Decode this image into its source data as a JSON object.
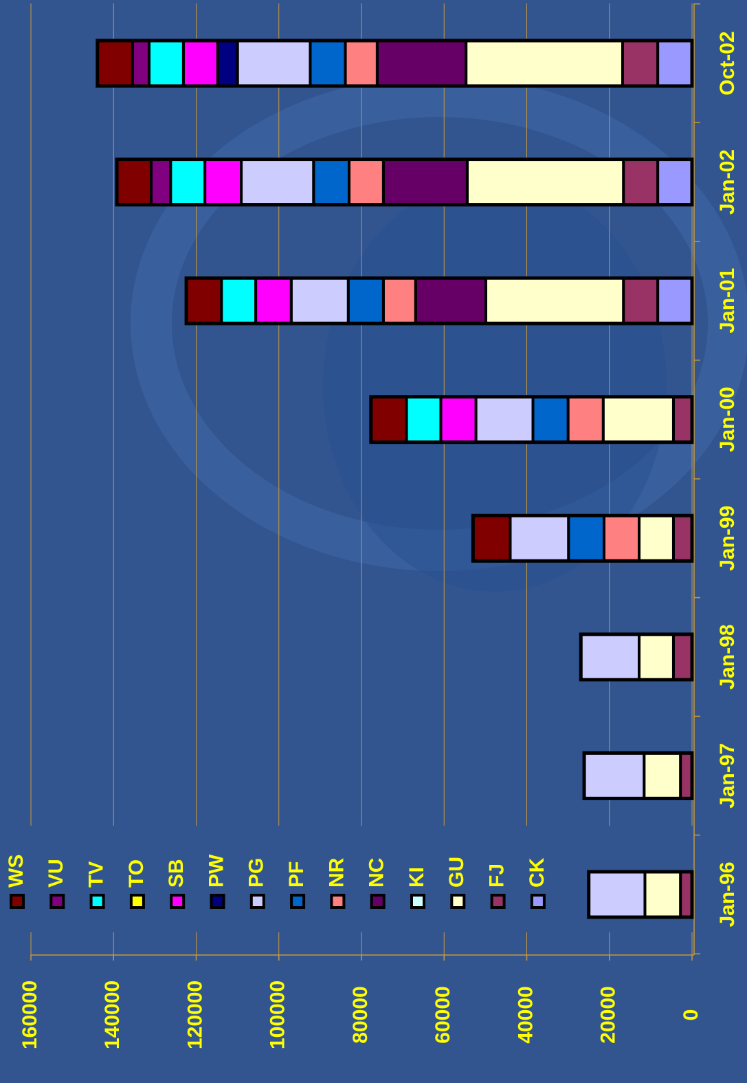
{
  "chart_data": {
    "type": "stacked_bar",
    "categories": [
      "Jan-96",
      "Jan-97",
      "Jan-98",
      "Jan-99",
      "Jan-00",
      "Jan-01",
      "Jan-02",
      "Oct-02"
    ],
    "series": [
      {
        "name": "CK",
        "color": "#9999ff",
        "values": [
          0,
          0,
          0,
          0,
          0,
          8300,
          8300,
          8300
        ]
      },
      {
        "name": "FJ",
        "color": "#993366",
        "values": [
          2800,
          2800,
          4500,
          4500,
          4500,
          8300,
          8300,
          8500
        ]
      },
      {
        "name": "GU",
        "color": "#ffffcc",
        "values": [
          8600,
          8800,
          8300,
          8300,
          17000,
          33300,
          37800,
          37900
        ]
      },
      {
        "name": "KI",
        "color": "#ccffff",
        "values": [
          0,
          0,
          0,
          0,
          0,
          0,
          0,
          0
        ]
      },
      {
        "name": "NC",
        "color": "#660066",
        "values": [
          0,
          0,
          0,
          0,
          0,
          17000,
          20300,
          21500
        ]
      },
      {
        "name": "NR",
        "color": "#ff8080",
        "values": [
          0,
          0,
          0,
          8500,
          8500,
          7800,
          8300,
          7700
        ]
      },
      {
        "name": "PF",
        "color": "#0066cc",
        "values": [
          0,
          0,
          0,
          8600,
          8500,
          8500,
          8600,
          8500
        ]
      },
      {
        "name": "PG",
        "color": "#ccccff",
        "values": [
          13600,
          14500,
          14100,
          14100,
          13800,
          13800,
          17500,
          17600
        ]
      },
      {
        "name": "PW",
        "color": "#000080",
        "values": [
          0,
          0,
          0,
          0,
          0,
          0,
          0,
          4800
        ]
      },
      {
        "name": "SB",
        "color": "#ff00ff",
        "values": [
          0,
          0,
          0,
          0,
          8500,
          8600,
          8800,
          8300
        ]
      },
      {
        "name": "TO",
        "color": "#ffff00",
        "values": [
          0,
          0,
          0,
          0,
          0,
          0,
          0,
          0
        ]
      },
      {
        "name": "TV",
        "color": "#00ffff",
        "values": [
          0,
          0,
          0,
          0,
          8300,
          8300,
          8300,
          8300
        ]
      },
      {
        "name": "VU",
        "color": "#800080",
        "values": [
          0,
          0,
          0,
          0,
          0,
          0,
          4700,
          4000
        ]
      },
      {
        "name": "WS",
        "color": "#800000",
        "values": [
          0,
          0,
          0,
          9000,
          8600,
          8500,
          8300,
          8500
        ]
      }
    ],
    "ylim": [
      0,
      160000
    ],
    "yticks": [
      0,
      20000,
      40000,
      60000,
      80000,
      100000,
      120000,
      140000,
      160000
    ],
    "grid": true,
    "legend": true
  }
}
